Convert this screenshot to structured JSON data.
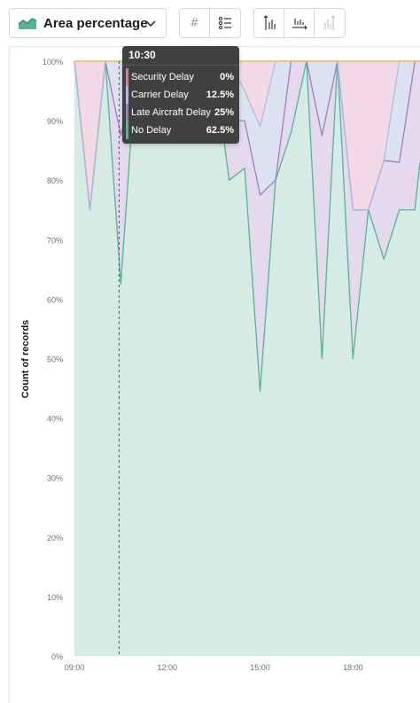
{
  "toolbar": {
    "chart_type_label": "Area percentage",
    "chart_type_icon": "area-chart-icon",
    "value_format_icon": "hash-icon",
    "legend_icon": "list-icon",
    "axis_icons": [
      "vertical-axis-icon",
      "horizontal-axis-icon",
      "right-axis-icon"
    ]
  },
  "tooltip": {
    "header": "10:30",
    "rows": [
      {
        "label": "Security Delay",
        "value": "0%",
        "color": "#c97fa6"
      },
      {
        "label": "Carrier Delay",
        "value": "12.5%",
        "color": "#b3b8e0"
      },
      {
        "label": "Late Aircraft Delay",
        "value": "25%",
        "color": "#9b7fbd"
      },
      {
        "label": "No Delay",
        "value": "62.5%",
        "color": "#54b399"
      }
    ]
  },
  "chart_data": {
    "type": "area",
    "stacked": "percentage",
    "ylabel": "Count of records",
    "xlabel": "",
    "x_ticks": [
      "09:00",
      "12:00",
      "15:00",
      "18:00"
    ],
    "y_ticks": [
      "0%",
      "10%",
      "20%",
      "30%",
      "40%",
      "50%",
      "60%",
      "70%",
      "80%",
      "90%",
      "100%"
    ],
    "ylim": [
      0,
      100
    ],
    "xlim": [
      "09:00",
      "20:10"
    ],
    "x": [
      "09:00",
      "09:30",
      "10:00",
      "10:30",
      "11:00",
      "11:30",
      "12:00",
      "12:30",
      "13:00",
      "13:30",
      "14:00",
      "14:30",
      "15:00",
      "15:30",
      "16:00",
      "16:30",
      "17:00",
      "17:30",
      "18:00",
      "18:30",
      "19:00",
      "19:30",
      "20:00",
      "20:10"
    ],
    "series": [
      {
        "name": "No Delay",
        "color": "#54b399",
        "fill": "#d6ebe4",
        "values": [
          100,
          75,
          100,
          62.5,
          100,
          100,
          100,
          100,
          100,
          100,
          80,
          82,
          44.5,
          80,
          88,
          100,
          50,
          100,
          50,
          75,
          66.7,
          75,
          75,
          83
        ]
      },
      {
        "name": "Late Aircraft Delay",
        "color": "#9b7fbd",
        "fill": "#e4d9ef",
        "values": [
          0,
          0,
          0,
          25,
          0,
          0,
          0,
          0,
          0,
          0,
          10,
          8,
          33,
          0,
          12,
          0,
          37.5,
          0,
          25,
          0,
          16.6,
          8,
          25,
          17
        ]
      },
      {
        "name": "Carrier Delay",
        "color": "#b3b8e0",
        "fill": "#dde2f3",
        "values": [
          0,
          0,
          0,
          12.5,
          0,
          0,
          0,
          0,
          0,
          0,
          10,
          5,
          11.5,
          20,
          0,
          0,
          12.5,
          0,
          0,
          0,
          0,
          17,
          0,
          0
        ]
      },
      {
        "name": "Security Delay",
        "color": "#c97fa6",
        "fill": "#f2d9e5",
        "values": [
          0,
          25,
          0,
          0,
          0,
          0,
          0,
          0,
          0,
          0,
          0,
          5,
          11,
          0,
          0,
          0,
          0,
          0,
          25,
          25,
          16.7,
          0,
          0,
          0
        ]
      }
    ],
    "annotations": [
      {
        "type": "crosshair",
        "x": "10:30"
      }
    ],
    "grid": true,
    "legend": "none"
  }
}
